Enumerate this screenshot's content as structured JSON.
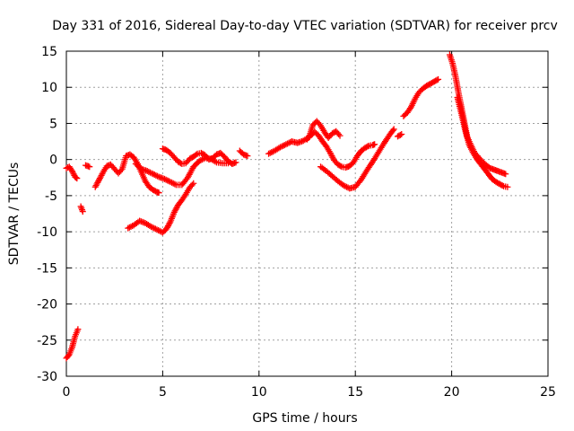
{
  "chart_data": {
    "type": "scatter",
    "title": "Day 331 of 2016, Sidereal Day-to-day VTEC variation (SDTVAR) for receiver prcv",
    "xlabel": "GPS time / hours",
    "ylabel": "SDTVAR / TECUs",
    "xlim": [
      0,
      25
    ],
    "ylim": [
      -30,
      15
    ],
    "xticks": [
      "0",
      "5",
      "10",
      "15",
      "20",
      "25"
    ],
    "yticks": [
      "-30",
      "-25",
      "-20",
      "-15",
      "-10",
      "-5",
      "0",
      "5",
      "10",
      "15"
    ],
    "grid": true,
    "marker": "plus",
    "color": "#ff0000",
    "series": [
      {
        "name": "s1",
        "x": [
          0.0,
          0.15,
          0.3,
          0.45,
          0.55
        ],
        "y": [
          -1.2,
          -1.0,
          -1.6,
          -2.4,
          -2.6
        ]
      },
      {
        "name": "s2",
        "x": [
          0.0,
          0.15,
          0.3,
          0.45,
          0.6
        ],
        "y": [
          -27.5,
          -27.0,
          -26.0,
          -24.5,
          -23.5
        ]
      },
      {
        "name": "s3",
        "x": [
          0.75,
          0.85
        ],
        "y": [
          -6.5,
          -7.2
        ]
      },
      {
        "name": "s4",
        "x": [
          1.0,
          1.2
        ],
        "y": [
          -0.8,
          -1.0
        ]
      },
      {
        "name": "s5",
        "x": [
          1.5,
          1.7,
          1.9,
          2.1,
          2.3,
          2.5,
          2.7,
          2.9,
          3.1,
          3.3,
          3.5,
          3.7,
          3.9,
          4.1,
          4.3,
          4.5,
          4.7,
          4.8
        ],
        "y": [
          -3.8,
          -2.8,
          -1.8,
          -0.9,
          -0.7,
          -1.3,
          -1.9,
          -1.3,
          0.5,
          0.7,
          0.3,
          -0.6,
          -1.8,
          -3.0,
          -3.8,
          -4.2,
          -4.5,
          -4.6
        ]
      },
      {
        "name": "s6",
        "x": [
          3.2,
          3.5,
          3.8,
          4.1,
          4.4,
          4.7,
          5.0,
          5.2,
          5.4,
          5.6,
          5.8,
          6.0,
          6.2,
          6.4,
          6.6
        ],
        "y": [
          -9.5,
          -9.1,
          -8.5,
          -8.8,
          -9.3,
          -9.7,
          -10.1,
          -9.6,
          -8.6,
          -7.3,
          -6.3,
          -5.6,
          -4.8,
          -3.9,
          -3.3
        ]
      },
      {
        "name": "s7",
        "x": [
          5.0,
          5.2,
          5.4,
          5.6,
          5.8,
          6.0,
          6.2,
          6.4,
          6.6,
          6.8,
          7.0,
          7.2,
          7.4,
          7.6,
          7.8,
          8.0,
          8.2,
          8.4,
          8.6,
          8.8
        ],
        "y": [
          1.5,
          1.3,
          0.9,
          0.3,
          -0.3,
          -0.6,
          -0.5,
          0.1,
          0.4,
          0.8,
          0.9,
          0.6,
          0.0,
          0.2,
          0.7,
          0.9,
          0.4,
          -0.2,
          -0.6,
          -0.4
        ]
      },
      {
        "name": "s8",
        "x": [
          3.6,
          3.9,
          4.2,
          4.5,
          4.8,
          5.1,
          5.4,
          5.7,
          6.0,
          6.3,
          6.6,
          6.9,
          7.2,
          7.5,
          7.8,
          8.1,
          8.4
        ],
        "y": [
          -0.6,
          -1.3,
          -1.6,
          -2.0,
          -2.4,
          -2.7,
          -3.1,
          -3.5,
          -3.5,
          -2.5,
          -1.0,
          -0.2,
          0.2,
          0.1,
          -0.4,
          -0.5,
          -0.5
        ]
      },
      {
        "name": "s9",
        "x": [
          9.0,
          9.2,
          9.4
        ],
        "y": [
          1.2,
          0.7,
          0.5
        ]
      },
      {
        "name": "s10",
        "x": [
          10.5,
          10.8,
          11.1,
          11.4,
          11.7,
          12.0,
          12.3,
          12.6,
          12.8,
          13.0,
          13.2,
          13.4,
          13.6,
          13.8,
          14.0,
          14.2
        ],
        "y": [
          0.8,
          1.2,
          1.7,
          2.1,
          2.5,
          2.3,
          2.6,
          3.1,
          4.8,
          5.3,
          4.7,
          3.8,
          3.0,
          3.6,
          3.9,
          3.3
        ]
      },
      {
        "name": "s11",
        "x": [
          12.5,
          12.7,
          12.9,
          13.1,
          13.3,
          13.5,
          13.7,
          13.9,
          14.1,
          14.3,
          14.5,
          14.7,
          14.9,
          15.1,
          15.3,
          15.5,
          15.7,
          15.9,
          16.0
        ],
        "y": [
          2.8,
          3.4,
          3.8,
          3.3,
          2.5,
          1.8,
          0.9,
          -0.1,
          -0.7,
          -1.0,
          -1.1,
          -0.9,
          -0.4,
          0.5,
          1.2,
          1.6,
          1.9,
          2.0,
          2.1
        ]
      },
      {
        "name": "s12",
        "x": [
          13.2,
          13.5,
          13.8,
          14.1,
          14.4,
          14.7,
          15.0,
          15.3,
          15.6,
          15.9,
          16.2,
          16.5,
          16.8,
          17.0
        ],
        "y": [
          -1.0,
          -1.6,
          -2.3,
          -3.0,
          -3.6,
          -4.0,
          -3.8,
          -2.8,
          -1.5,
          -0.3,
          1.0,
          2.3,
          3.5,
          4.2
        ]
      },
      {
        "name": "s13",
        "x": [
          17.2,
          17.4
        ],
        "y": [
          3.2,
          3.5
        ]
      },
      {
        "name": "s14",
        "x": [
          17.5,
          17.7,
          17.9,
          18.1,
          18.3,
          18.5,
          18.7,
          18.9,
          19.1,
          19.3
        ],
        "y": [
          6.0,
          6.5,
          7.3,
          8.4,
          9.3,
          9.8,
          10.2,
          10.5,
          10.8,
          11.1
        ]
      },
      {
        "name": "s15",
        "x": [
          19.9,
          20.05,
          20.2,
          20.35,
          20.5,
          20.65,
          20.8,
          21.0,
          21.2,
          21.4,
          21.6,
          21.8,
          22.0,
          22.2,
          22.4,
          22.6,
          22.8
        ],
        "y": [
          14.5,
          13.3,
          11.5,
          9.3,
          7.3,
          5.3,
          3.2,
          2.0,
          0.9,
          0.3,
          -0.3,
          -0.8,
          -1.2,
          -1.4,
          -1.6,
          -1.8,
          -2.0
        ]
      },
      {
        "name": "s16",
        "x": [
          20.3,
          20.5,
          20.7,
          20.9,
          21.1,
          21.3,
          21.5,
          21.7,
          21.9,
          22.1,
          22.3,
          22.5,
          22.7,
          22.9
        ],
        "y": [
          8.6,
          6.4,
          4.1,
          2.1,
          1.0,
          0.1,
          -0.6,
          -1.3,
          -2.0,
          -2.7,
          -3.1,
          -3.4,
          -3.7,
          -3.8
        ]
      }
    ]
  }
}
